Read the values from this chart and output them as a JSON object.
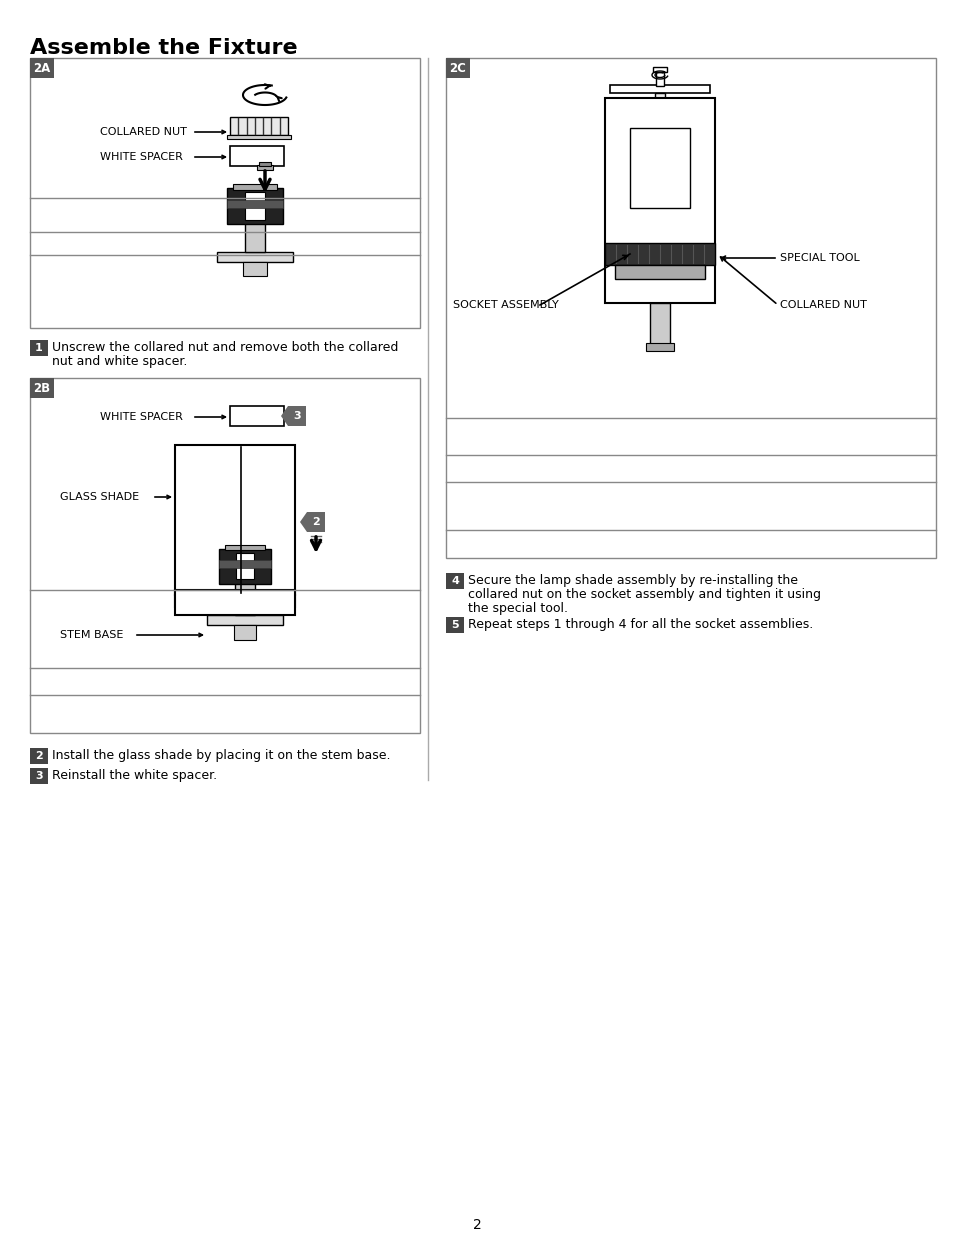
{
  "title": "Assemble the Fixture",
  "bg_color": "#ffffff",
  "page_number": "2",
  "panel_2A_label": "2A",
  "panel_2B_label": "2B",
  "panel_2C_label": "2C",
  "step1_text_line1": "Unscrew the collared nut and remove both the collared",
  "step1_text_line2": "nut and white spacer.",
  "step2_text": "Install the glass shade by placing it on the stem base.",
  "step3_text": "Reinstall the white spacer.",
  "step4_text_line1": "Secure the lamp shade assembly by re-installing the",
  "step4_text_line2": "collared nut on the socket assembly and tighten it using",
  "step4_text_line3": "the special tool.",
  "step5_text": "Repeat steps 1 through 4 for all the socket assemblies.",
  "collared_nut_label": "COLLARED NUT",
  "white_spacer_label": "WHITE SPACER",
  "glass_shade_label": "GLASS SHADE",
  "stem_base_label": "STEM BASE",
  "socket_assembly_label": "SOCKET ASSEMBLY",
  "special_tool_label": "SPECIAL TOOL",
  "collared_nut_label_2c": "COLLARED NUT"
}
